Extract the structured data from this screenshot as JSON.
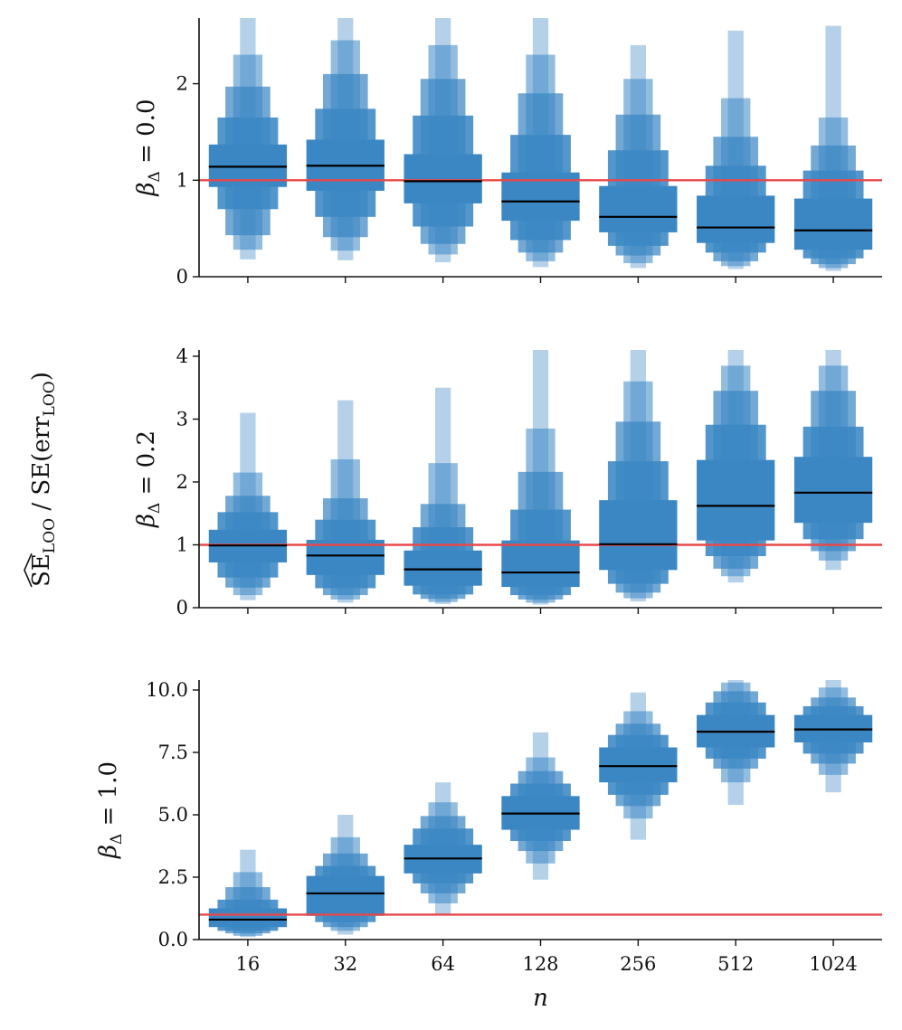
{
  "figure": {
    "ylabel_shared": "SE_LOO / SE(err_LOO)",
    "ylabel_main": "SE",
    "ylabel_sub": "LOO",
    "ylabel_mid": " / SE(err",
    "ylabel_sub2": "LOO",
    "ylabel_end": ")",
    "xlabel": "n",
    "colors": {
      "box": "#3b87c4",
      "median": "#000000",
      "reference": "#e8484a"
    }
  },
  "chart_data": [
    {
      "type": "boxen",
      "panel_label": "β",
      "panel_label_sub": "Δ",
      "panel_label_rest": " = 0.0",
      "categories": [
        "16",
        "32",
        "64",
        "128",
        "256",
        "512",
        "1024"
      ],
      "ylim": [
        0,
        2.68
      ],
      "yticks": [
        0,
        1,
        2
      ],
      "ytick_labels": [
        "0",
        "1",
        "2"
      ],
      "reference_line": 1.0,
      "series": [
        {
          "name": "16",
          "median": 1.14,
          "quantiles": [
            [
              0.93,
              1.37
            ],
            [
              0.7,
              1.65
            ],
            [
              0.43,
              1.97
            ],
            [
              0.28,
              2.3
            ],
            [
              0.18,
              2.68
            ]
          ]
        },
        {
          "name": "32",
          "median": 1.15,
          "quantiles": [
            [
              0.89,
              1.42
            ],
            [
              0.62,
              1.74
            ],
            [
              0.41,
              2.1
            ],
            [
              0.27,
              2.45
            ],
            [
              0.17,
              2.68
            ]
          ]
        },
        {
          "name": "64",
          "median": 0.99,
          "quantiles": [
            [
              0.76,
              1.27
            ],
            [
              0.52,
              1.67
            ],
            [
              0.34,
              2.05
            ],
            [
              0.23,
              2.4
            ],
            [
              0.15,
              2.68
            ]
          ]
        },
        {
          "name": "128",
          "median": 0.78,
          "quantiles": [
            [
              0.58,
              1.08
            ],
            [
              0.38,
              1.47
            ],
            [
              0.25,
              1.9
            ],
            [
              0.16,
              2.3
            ],
            [
              0.1,
              2.68
            ]
          ]
        },
        {
          "name": "256",
          "median": 0.62,
          "quantiles": [
            [
              0.46,
              0.94
            ],
            [
              0.32,
              1.31
            ],
            [
              0.22,
              1.68
            ],
            [
              0.14,
              2.05
            ],
            [
              0.09,
              2.4
            ]
          ]
        },
        {
          "name": "512",
          "median": 0.51,
          "quantiles": [
            [
              0.35,
              0.84
            ],
            [
              0.25,
              1.15
            ],
            [
              0.16,
              1.45
            ],
            [
              0.11,
              1.85
            ],
            [
              0.08,
              2.55
            ]
          ]
        },
        {
          "name": "1024",
          "median": 0.48,
          "quantiles": [
            [
              0.28,
              0.81
            ],
            [
              0.19,
              1.1
            ],
            [
              0.13,
              1.36
            ],
            [
              0.09,
              1.65
            ],
            [
              0.06,
              2.6
            ]
          ]
        }
      ]
    },
    {
      "type": "boxen",
      "panel_label": "β",
      "panel_label_sub": "Δ",
      "panel_label_rest": " = 0.2",
      "categories": [
        "16",
        "32",
        "64",
        "128",
        "256",
        "512",
        "1024"
      ],
      "ylim": [
        0,
        4.1
      ],
      "yticks": [
        0,
        1,
        2,
        3,
        4
      ],
      "ytick_labels": [
        "0",
        "1",
        "2",
        "3",
        "4"
      ],
      "reference_line": 1.0,
      "series": [
        {
          "name": "16",
          "median": 0.99,
          "quantiles": [
            [
              0.72,
              1.24
            ],
            [
              0.48,
              1.52
            ],
            [
              0.32,
              1.78
            ],
            [
              0.2,
              2.15
            ],
            [
              0.12,
              3.1
            ]
          ]
        },
        {
          "name": "32",
          "median": 0.83,
          "quantiles": [
            [
              0.52,
              1.08
            ],
            [
              0.31,
              1.4
            ],
            [
              0.2,
              1.74
            ],
            [
              0.13,
              2.36
            ],
            [
              0.08,
              3.3
            ]
          ]
        },
        {
          "name": "64",
          "median": 0.61,
          "quantiles": [
            [
              0.35,
              0.91
            ],
            [
              0.21,
              1.28
            ],
            [
              0.14,
              1.65
            ],
            [
              0.09,
              2.3
            ],
            [
              0.06,
              3.5
            ]
          ]
        },
        {
          "name": "128",
          "median": 0.56,
          "quantiles": [
            [
              0.33,
              1.07
            ],
            [
              0.2,
              1.56
            ],
            [
              0.13,
              2.16
            ],
            [
              0.08,
              2.85
            ],
            [
              0.05,
              4.1
            ]
          ]
        },
        {
          "name": "256",
          "median": 1.01,
          "quantiles": [
            [
              0.6,
              1.71
            ],
            [
              0.38,
              2.33
            ],
            [
              0.24,
              2.96
            ],
            [
              0.15,
              3.6
            ],
            [
              0.1,
              4.1
            ]
          ]
        },
        {
          "name": "512",
          "median": 1.62,
          "quantiles": [
            [
              1.07,
              2.35
            ],
            [
              0.82,
              2.91
            ],
            [
              0.62,
              3.45
            ],
            [
              0.5,
              3.85
            ],
            [
              0.4,
              4.1
            ]
          ]
        },
        {
          "name": "1024",
          "median": 1.83,
          "quantiles": [
            [
              1.35,
              2.4
            ],
            [
              1.09,
              2.88
            ],
            [
              0.9,
              3.45
            ],
            [
              0.75,
              3.85
            ],
            [
              0.6,
              4.1
            ]
          ]
        }
      ]
    },
    {
      "type": "boxen",
      "panel_label": "β",
      "panel_label_sub": "Δ",
      "panel_label_rest": " = 1.0",
      "categories": [
        "16",
        "32",
        "64",
        "128",
        "256",
        "512",
        "1024"
      ],
      "ylim": [
        0,
        10.4
      ],
      "yticks": [
        0,
        2.5,
        5,
        7.5,
        10
      ],
      "ytick_labels": [
        "0.0",
        "2.5",
        "5.0",
        "7.5",
        "10.0"
      ],
      "reference_line": 1.0,
      "series": [
        {
          "name": "16",
          "median": 0.8,
          "quantiles": [
            [
              0.5,
              1.25
            ],
            [
              0.35,
              1.6
            ],
            [
              0.25,
              2.1
            ],
            [
              0.15,
              2.7
            ],
            [
              0.1,
              3.6
            ]
          ]
        },
        {
          "name": "32",
          "median": 1.85,
          "quantiles": [
            [
              0.95,
              2.55
            ],
            [
              0.7,
              2.95
            ],
            [
              0.5,
              3.45
            ],
            [
              0.35,
              4.1
            ],
            [
              0.2,
              5.0
            ]
          ]
        },
        {
          "name": "64",
          "median": 3.25,
          "quantiles": [
            [
              2.65,
              3.8
            ],
            [
              2.25,
              4.45
            ],
            [
              1.85,
              4.95
            ],
            [
              1.45,
              5.5
            ],
            [
              1.0,
              6.3
            ]
          ]
        },
        {
          "name": "128",
          "median": 5.05,
          "quantiles": [
            [
              4.4,
              5.75
            ],
            [
              3.95,
              6.25
            ],
            [
              3.55,
              6.75
            ],
            [
              3.05,
              7.3
            ],
            [
              2.4,
              8.3
            ]
          ]
        },
        {
          "name": "256",
          "median": 6.95,
          "quantiles": [
            [
              6.3,
              7.7
            ],
            [
              5.8,
              8.2
            ],
            [
              5.35,
              8.65
            ],
            [
              4.85,
              9.15
            ],
            [
              4.0,
              9.9
            ]
          ]
        },
        {
          "name": "512",
          "median": 8.33,
          "quantiles": [
            [
              7.7,
              9.0
            ],
            [
              7.25,
              9.5
            ],
            [
              6.85,
              9.95
            ],
            [
              6.3,
              10.3
            ],
            [
              5.4,
              10.4
            ]
          ]
        },
        {
          "name": "1024",
          "median": 8.42,
          "quantiles": [
            [
              7.9,
              9.0
            ],
            [
              7.45,
              9.35
            ],
            [
              7.05,
              9.7
            ],
            [
              6.6,
              10.1
            ],
            [
              5.9,
              10.4
            ]
          ]
        }
      ]
    }
  ]
}
